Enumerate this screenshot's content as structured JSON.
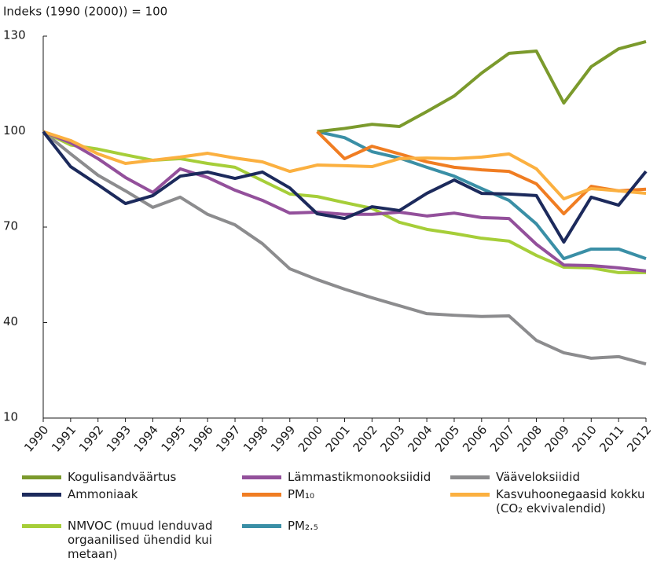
{
  "chart_data": {
    "type": "line",
    "y_label": "Indeks (1990 (2000)) = 100",
    "categories": [
      "1990",
      "1991",
      "1992",
      "1993",
      "1994",
      "1995",
      "1996",
      "1997",
      "1998",
      "1999",
      "2000",
      "2001",
      "2002",
      "2003",
      "2004",
      "2005",
      "2006",
      "2007",
      "2008",
      "2009",
      "2010",
      "2011",
      "2012"
    ],
    "ylim": [
      10,
      130
    ],
    "yticks": [
      10,
      40,
      70,
      100,
      130
    ],
    "grid": false,
    "legend": "bottom",
    "series": [
      {
        "name": "Kogulisandväärtus",
        "color": "#7b9a2c",
        "values": [
          null,
          null,
          null,
          null,
          null,
          null,
          null,
          null,
          null,
          null,
          100,
          101,
          102.3,
          101.6,
          106.3,
          111.2,
          118.4,
          124.6,
          125.3,
          109,
          120.4,
          126,
          128.3
        ]
      },
      {
        "name": "Lämmastikmonooksiidid",
        "color": "#93509b",
        "values": [
          100,
          96.5,
          91.5,
          85.6,
          80.9,
          88.3,
          85.6,
          81.6,
          78.4,
          74.4,
          74.7,
          74,
          74,
          74.7,
          73.5,
          74.4,
          73,
          72.7,
          64.6,
          58.1,
          57.9,
          57.2,
          56.2
        ]
      },
      {
        "name": "Vääveloksiidid",
        "color": "#8c8c8e",
        "values": [
          100,
          93,
          86.3,
          81.4,
          76.2,
          79.4,
          74,
          70.7,
          64.8,
          56.9,
          53.5,
          50.5,
          47.8,
          45.3,
          42.8,
          42.3,
          41.9,
          42.1,
          34.4,
          30.5,
          28.8,
          29.3,
          27
        ]
      },
      {
        "name": "Ammoniaak",
        "color": "#1c2a5c",
        "values": [
          100,
          89,
          83.3,
          77.4,
          79.9,
          86,
          87.3,
          85.3,
          87.3,
          82.3,
          74.2,
          72.7,
          76.4,
          75.2,
          80.6,
          84.8,
          80.6,
          80.4,
          79.9,
          65.3,
          79.4,
          76.9,
          87.5
        ]
      },
      {
        "name": "PM₁₀",
        "color": "#f07d22",
        "values": [
          null,
          null,
          null,
          null,
          null,
          null,
          null,
          null,
          null,
          null,
          100,
          91.5,
          95.4,
          93,
          90.5,
          88.8,
          88,
          87.5,
          83.6,
          74.2,
          82.8,
          81.4,
          81.9
        ]
      },
      {
        "name": "Kasvuhoonegaasid kokku (CO₂ ekvivalendid)",
        "color": "#fbb040",
        "values": [
          100,
          97.2,
          93,
          90,
          91,
          92,
          93.2,
          91.7,
          90.5,
          87.5,
          89.5,
          89.3,
          89,
          91.5,
          91.7,
          91.5,
          92,
          93,
          88.3,
          78.9,
          82.1,
          81.4,
          80.6
        ]
      },
      {
        "name": "NMVOC (muud lenduvad orgaanilised ühendid kui metaan)",
        "color": "#a6ce39",
        "values": [
          100,
          95.8,
          94.5,
          92.7,
          91,
          91.5,
          90,
          88.8,
          84.6,
          80.4,
          79.6,
          77.7,
          75.9,
          71.5,
          69.3,
          68,
          66.5,
          65.6,
          61.1,
          57.4,
          57.2,
          55.7,
          55.7
        ]
      },
      {
        "name": "PM₂.₅",
        "color": "#3a8fa6",
        "values": [
          null,
          null,
          null,
          null,
          null,
          null,
          null,
          null,
          null,
          null,
          100,
          98.1,
          93.7,
          91.7,
          88.8,
          86,
          82.1,
          78.4,
          71,
          60.1,
          63.1,
          63.1,
          60.1
        ]
      }
    ]
  }
}
